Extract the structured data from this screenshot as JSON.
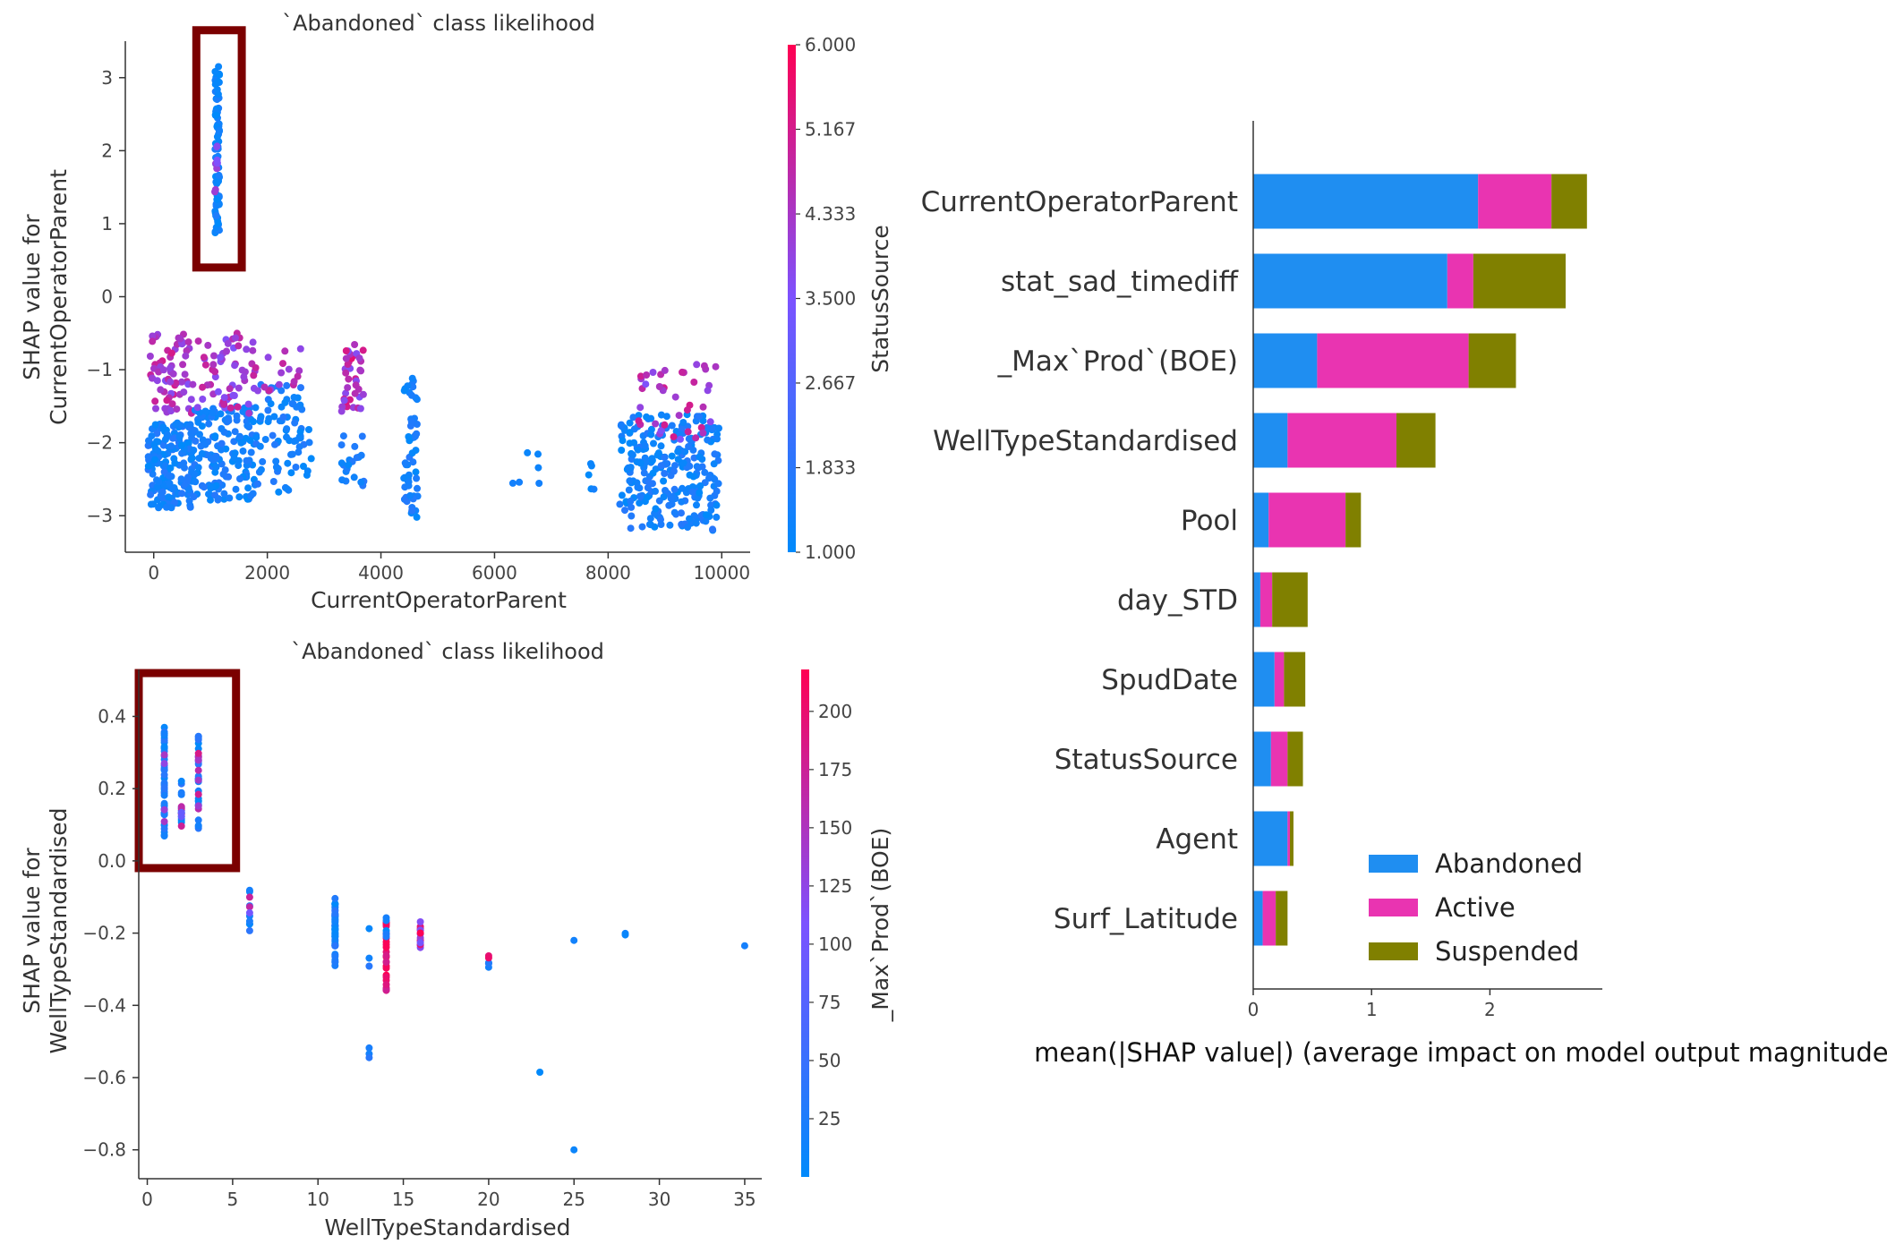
{
  "colors": {
    "abandoned": "#1f8ef1",
    "active": "#e934b1",
    "suspended": "#808000",
    "highlight_box": "#7b0000",
    "cmap_low": "#008afb",
    "cmap_mid": "#7c52ff",
    "cmap_high": "#ff0052"
  },
  "chart_data": [
    {
      "type": "scatter",
      "title": "`Abandoned` class likelihood",
      "xlabel": "CurrentOperatorParent",
      "ylabel_lines": [
        "SHAP value for",
        "CurrentOperatorParent"
      ],
      "xlim": [
        -500,
        10500
      ],
      "ylim": [
        -3.5,
        3.5
      ],
      "xticks": [
        0,
        2000,
        4000,
        6000,
        8000,
        10000
      ],
      "xtick_labels": [
        "0",
        "2000",
        "4000",
        "6000",
        "8000",
        "10000"
      ],
      "yticks": [
        3,
        2,
        1,
        0,
        -1,
        -2,
        -3
      ],
      "ytick_labels": [
        "3",
        "2",
        "1",
        "0",
        "−1",
        "−2",
        "−3"
      ],
      "colorbar": {
        "label": "StatusSource",
        "range": [
          1,
          6
        ],
        "ticks": [
          6.0,
          5.167,
          4.333,
          3.5,
          2.667,
          1.833,
          1.0
        ],
        "tick_labels": [
          "6.000",
          "5.167",
          "4.333",
          "3.500",
          "2.667",
          "1.833",
          "1.000"
        ]
      },
      "highlight": {
        "x": [
          750,
          1550
        ],
        "y": [
          0.4,
          3.65
        ]
      },
      "clusters": [
        {
          "x": [
            1080,
            1160
          ],
          "y": [
            0.85,
            3.2
          ],
          "n": 90,
          "c": [
            1,
            1.6
          ]
        },
        {
          "x": [
            1070,
            1170
          ],
          "y": [
            1.4,
            2.2
          ],
          "n": 8,
          "c": [
            3.5,
            4.3
          ]
        },
        {
          "x": [
            -100,
            700
          ],
          "y": [
            -2.9,
            -1.7
          ],
          "n": 170,
          "c": [
            1,
            1.8
          ]
        },
        {
          "x": [
            -60,
            700
          ],
          "y": [
            -1.6,
            -0.5
          ],
          "n": 70,
          "c": [
            3.5,
            5.2
          ]
        },
        {
          "x": [
            700,
            1800
          ],
          "y": [
            -2.8,
            -1.5
          ],
          "n": 150,
          "c": [
            1,
            1.8
          ]
        },
        {
          "x": [
            750,
            1800
          ],
          "y": [
            -1.6,
            -0.5
          ],
          "n": 60,
          "c": [
            3.5,
            5.0
          ]
        },
        {
          "x": [
            1800,
            2800
          ],
          "y": [
            -2.7,
            -1.2
          ],
          "n": 80,
          "c": [
            1,
            1.8
          ]
        },
        {
          "x": [
            1800,
            2600
          ],
          "y": [
            -1.3,
            -0.7
          ],
          "n": 15,
          "c": [
            3.5,
            5.0
          ]
        },
        {
          "x": [
            3300,
            3700
          ],
          "y": [
            -1.6,
            -0.6
          ],
          "n": 40,
          "c": [
            3.5,
            5.5
          ]
        },
        {
          "x": [
            3300,
            3700
          ],
          "y": [
            -2.6,
            -1.8
          ],
          "n": 20,
          "c": [
            1,
            1.8
          ]
        },
        {
          "x": [
            4400,
            4650
          ],
          "y": [
            -3.05,
            -1.1
          ],
          "n": 55,
          "c": [
            1,
            1.8
          ]
        },
        {
          "x": [
            6300,
            6800
          ],
          "y": [
            -2.6,
            -2.1
          ],
          "n": 6,
          "c": [
            1,
            1.5
          ]
        },
        {
          "x": [
            7650,
            7750
          ],
          "y": [
            -2.8,
            -2.2
          ],
          "n": 5,
          "c": [
            1,
            1.5
          ]
        },
        {
          "x": [
            8200,
            9950
          ],
          "y": [
            -3.2,
            -1.6
          ],
          "n": 260,
          "c": [
            1,
            1.8
          ]
        },
        {
          "x": [
            8500,
            9950
          ],
          "y": [
            -2.0,
            -0.9
          ],
          "n": 40,
          "c": [
            3.5,
            5.2
          ]
        }
      ]
    },
    {
      "type": "scatter",
      "title": "`Abandoned` class likelihood",
      "xlabel": "WellTypeStandardised",
      "ylabel_lines": [
        "SHAP value for",
        "WellTypeStandardised"
      ],
      "xlim": [
        -0.5,
        36
      ],
      "ylim": [
        -0.88,
        0.53
      ],
      "xticks": [
        0,
        5,
        10,
        15,
        20,
        25,
        30,
        35
      ],
      "xtick_labels": [
        "0",
        "5",
        "10",
        "15",
        "20",
        "25",
        "30",
        "35"
      ],
      "yticks": [
        0.4,
        0.2,
        0.0,
        -0.2,
        -0.4,
        -0.6,
        -0.8
      ],
      "ytick_labels": [
        "0.4",
        "0.2",
        "0.0",
        "−0.2",
        "−0.4",
        "−0.6",
        "−0.8"
      ],
      "colorbar": {
        "label": "_Max`Prod`(BOE)",
        "range": [
          0,
          218
        ],
        "ticks": [
          200,
          175,
          150,
          125,
          100,
          75,
          50,
          25
        ],
        "tick_labels": [
          "200",
          "175",
          "150",
          "125",
          "100",
          "75",
          "50",
          "25"
        ]
      },
      "highlight": {
        "x": [
          -0.5,
          5.2
        ],
        "y": [
          -0.02,
          0.52
        ]
      },
      "clusters": [
        {
          "x": [
            1,
            1
          ],
          "y": [
            0.06,
            0.39
          ],
          "n": 45,
          "c": [
            0,
            40
          ]
        },
        {
          "x": [
            1,
            1
          ],
          "y": [
            0.08,
            0.3
          ],
          "n": 4,
          "c": [
            100,
            160
          ]
        },
        {
          "x": [
            2,
            2
          ],
          "y": [
            0.07,
            0.23
          ],
          "n": 12,
          "c": [
            0,
            40
          ]
        },
        {
          "x": [
            2,
            2
          ],
          "y": [
            0.07,
            0.2
          ],
          "n": 6,
          "c": [
            90,
            180
          ]
        },
        {
          "x": [
            3,
            3
          ],
          "y": [
            0.09,
            0.36
          ],
          "n": 25,
          "c": [
            0,
            40
          ]
        },
        {
          "x": [
            3,
            3
          ],
          "y": [
            0.1,
            0.32
          ],
          "n": 10,
          "c": [
            100,
            200
          ]
        },
        {
          "x": [
            6,
            6
          ],
          "y": [
            -0.21,
            -0.06
          ],
          "n": 8,
          "c": [
            0,
            40
          ]
        },
        {
          "x": [
            6,
            6
          ],
          "y": [
            -0.15,
            -0.1
          ],
          "n": 3,
          "c": [
            100,
            180
          ]
        },
        {
          "x": [
            11,
            11
          ],
          "y": [
            -0.29,
            -0.1
          ],
          "n": 55,
          "c": [
            0,
            40
          ]
        },
        {
          "x": [
            13,
            13
          ],
          "y": [
            -0.3,
            -0.18
          ],
          "n": 3,
          "c": [
            0,
            40
          ]
        },
        {
          "x": [
            13,
            13
          ],
          "y": [
            -0.55,
            -0.5
          ],
          "n": 3,
          "c": [
            0,
            40
          ]
        },
        {
          "x": [
            14,
            14
          ],
          "y": [
            -0.36,
            -0.17
          ],
          "n": 25,
          "c": [
            170,
            218
          ]
        },
        {
          "x": [
            14,
            14
          ],
          "y": [
            -0.22,
            -0.15
          ],
          "n": 5,
          "c": [
            0,
            40
          ]
        },
        {
          "x": [
            16,
            16
          ],
          "y": [
            -0.24,
            -0.15
          ],
          "n": 14,
          "c": [
            100,
            218
          ]
        },
        {
          "x": [
            20,
            20
          ],
          "y": [
            -0.32,
            -0.26
          ],
          "n": 4,
          "c": [
            0,
            40
          ]
        },
        {
          "x": [
            20,
            20
          ],
          "y": [
            -0.27,
            -0.26
          ],
          "n": 2,
          "c": [
            180,
            218
          ]
        },
        {
          "x": [
            23,
            23
          ],
          "y": [
            -0.585,
            -0.585
          ],
          "n": 1,
          "c": [
            0,
            20
          ]
        },
        {
          "x": [
            25,
            25
          ],
          "y": [
            -0.8,
            -0.8
          ],
          "n": 1,
          "c": [
            0,
            20
          ]
        },
        {
          "x": [
            25,
            25
          ],
          "y": [
            -0.22,
            -0.22
          ],
          "n": 1,
          "c": [
            0,
            20
          ]
        },
        {
          "x": [
            28,
            28
          ],
          "y": [
            -0.21,
            -0.2
          ],
          "n": 2,
          "c": [
            0,
            20
          ]
        },
        {
          "x": [
            35,
            35
          ],
          "y": [
            -0.235,
            -0.235
          ],
          "n": 1,
          "c": [
            0,
            20
          ]
        }
      ]
    },
    {
      "type": "bar",
      "orientation": "horizontal",
      "stacked": true,
      "xlabel": "mean(|SHAP value|) (average impact on model output magnitude)",
      "xlim": [
        0,
        2.95
      ],
      "xticks": [
        0,
        1,
        2
      ],
      "xtick_labels": [
        "0",
        "1",
        "2"
      ],
      "legend_position": "lower-right",
      "categories": [
        "CurrentOperatorParent",
        "stat_sad_timediff",
        "_Max`Prod`(BOE)",
        "WellTypeStandardised",
        "Pool",
        "day_STD",
        "SpudDate",
        "StatusSource",
        "Agent",
        "Surf_Latitude"
      ],
      "series": [
        {
          "name": "Abandoned",
          "values": [
            1.9,
            1.64,
            0.54,
            0.29,
            0.13,
            0.06,
            0.18,
            0.15,
            0.29,
            0.08
          ]
        },
        {
          "name": "Active",
          "values": [
            0.62,
            0.22,
            1.28,
            0.92,
            0.65,
            0.1,
            0.08,
            0.14,
            0.02,
            0.11
          ]
        },
        {
          "name": "Suspended",
          "values": [
            0.3,
            0.78,
            0.4,
            0.33,
            0.13,
            0.3,
            0.18,
            0.13,
            0.03,
            0.1
          ]
        }
      ]
    }
  ]
}
